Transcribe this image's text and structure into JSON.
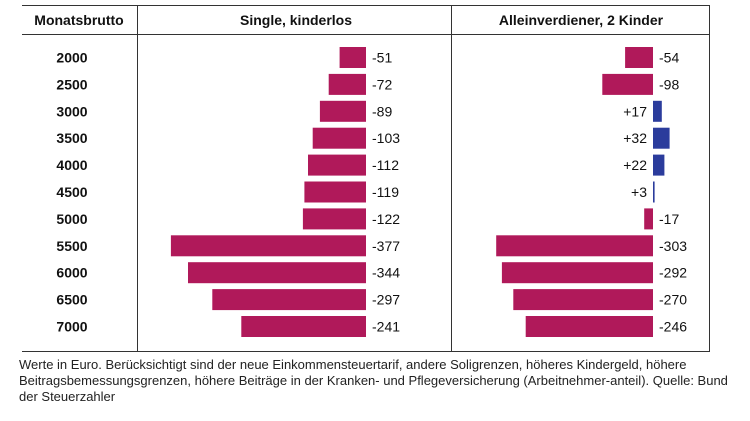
{
  "chart_data": {
    "type": "bar",
    "orientation": "horizontal",
    "row_header": "Monatsbrutto",
    "categories": [
      "2000",
      "2500",
      "3000",
      "3500",
      "4000",
      "4500",
      "5000",
      "5500",
      "6000",
      "6500",
      "7000"
    ],
    "series": [
      {
        "name": "Single, kinderlos",
        "values": [
          -51,
          -72,
          -89,
          -103,
          -112,
          -119,
          -122,
          -377,
          -344,
          -297,
          -241
        ],
        "labels": [
          "-51",
          "-72",
          "-89",
          "-103",
          "-112",
          "-119",
          "-122",
          "-377",
          "-344",
          "-297",
          "-241"
        ]
      },
      {
        "name": "Alleinverdiener, 2 Kinder",
        "values": [
          -54,
          -98,
          17,
          32,
          22,
          3,
          -17,
          -303,
          -292,
          -270,
          -246
        ],
        "labels": [
          "-54",
          "-98",
          "+17",
          "+32",
          "+22",
          "+3",
          "-17",
          "-303",
          "-292",
          "-270",
          "-246"
        ]
      }
    ],
    "colors": {
      "negative": "#b0195a",
      "positive": "#2b3c9c"
    },
    "grid": false
  },
  "footnote": "Werte in Euro. Berücksichtigt sind der neue Einkommensteuertarif, andere Soligrenzen, höheres Kindergeld, höhere Beitragsbemessungsgrenzen, höhere Beiträge in der Kranken- und Pflegeversicherung (Arbeitnehmer-anteil). Quelle: Bund der Steuerzahler"
}
